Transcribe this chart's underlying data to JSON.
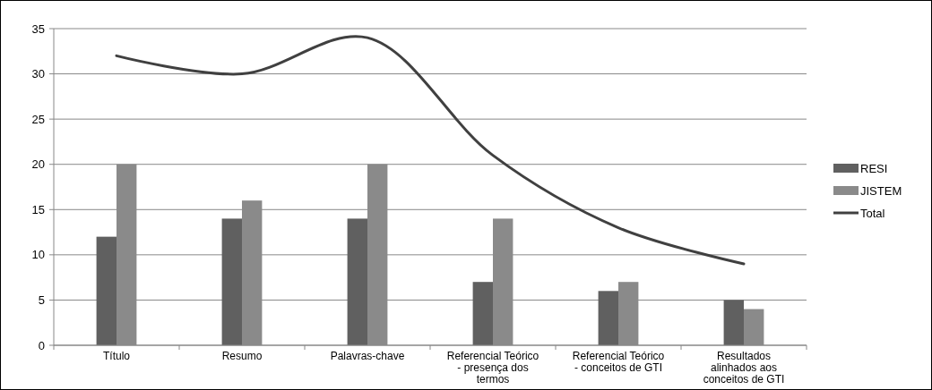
{
  "chart_data": {
    "type": "bar",
    "categories": [
      "Título",
      "Resumo",
      "Palavras-chave",
      "Referencial Teórico - presença dos termos",
      "Referencial Teórico - conceitos de GTI",
      "Resultados alinhados aos conceitos de GTI"
    ],
    "series": [
      {
        "name": "RESI",
        "color": "#606060",
        "values": [
          12,
          14,
          14,
          7,
          6,
          5
        ]
      },
      {
        "name": "JISTEM",
        "color": "#8a8a8a",
        "values": [
          20,
          16,
          20,
          14,
          7,
          4
        ]
      },
      {
        "name": "Total",
        "type": "line",
        "color": "#404040",
        "values": [
          32,
          30,
          34,
          21,
          13,
          9
        ]
      }
    ],
    "ylim": [
      0,
      35
    ],
    "yticks": [
      0,
      5,
      10,
      15,
      20,
      25,
      30,
      35
    ],
    "grid": "y",
    "legend": "right",
    "marker": "none"
  }
}
